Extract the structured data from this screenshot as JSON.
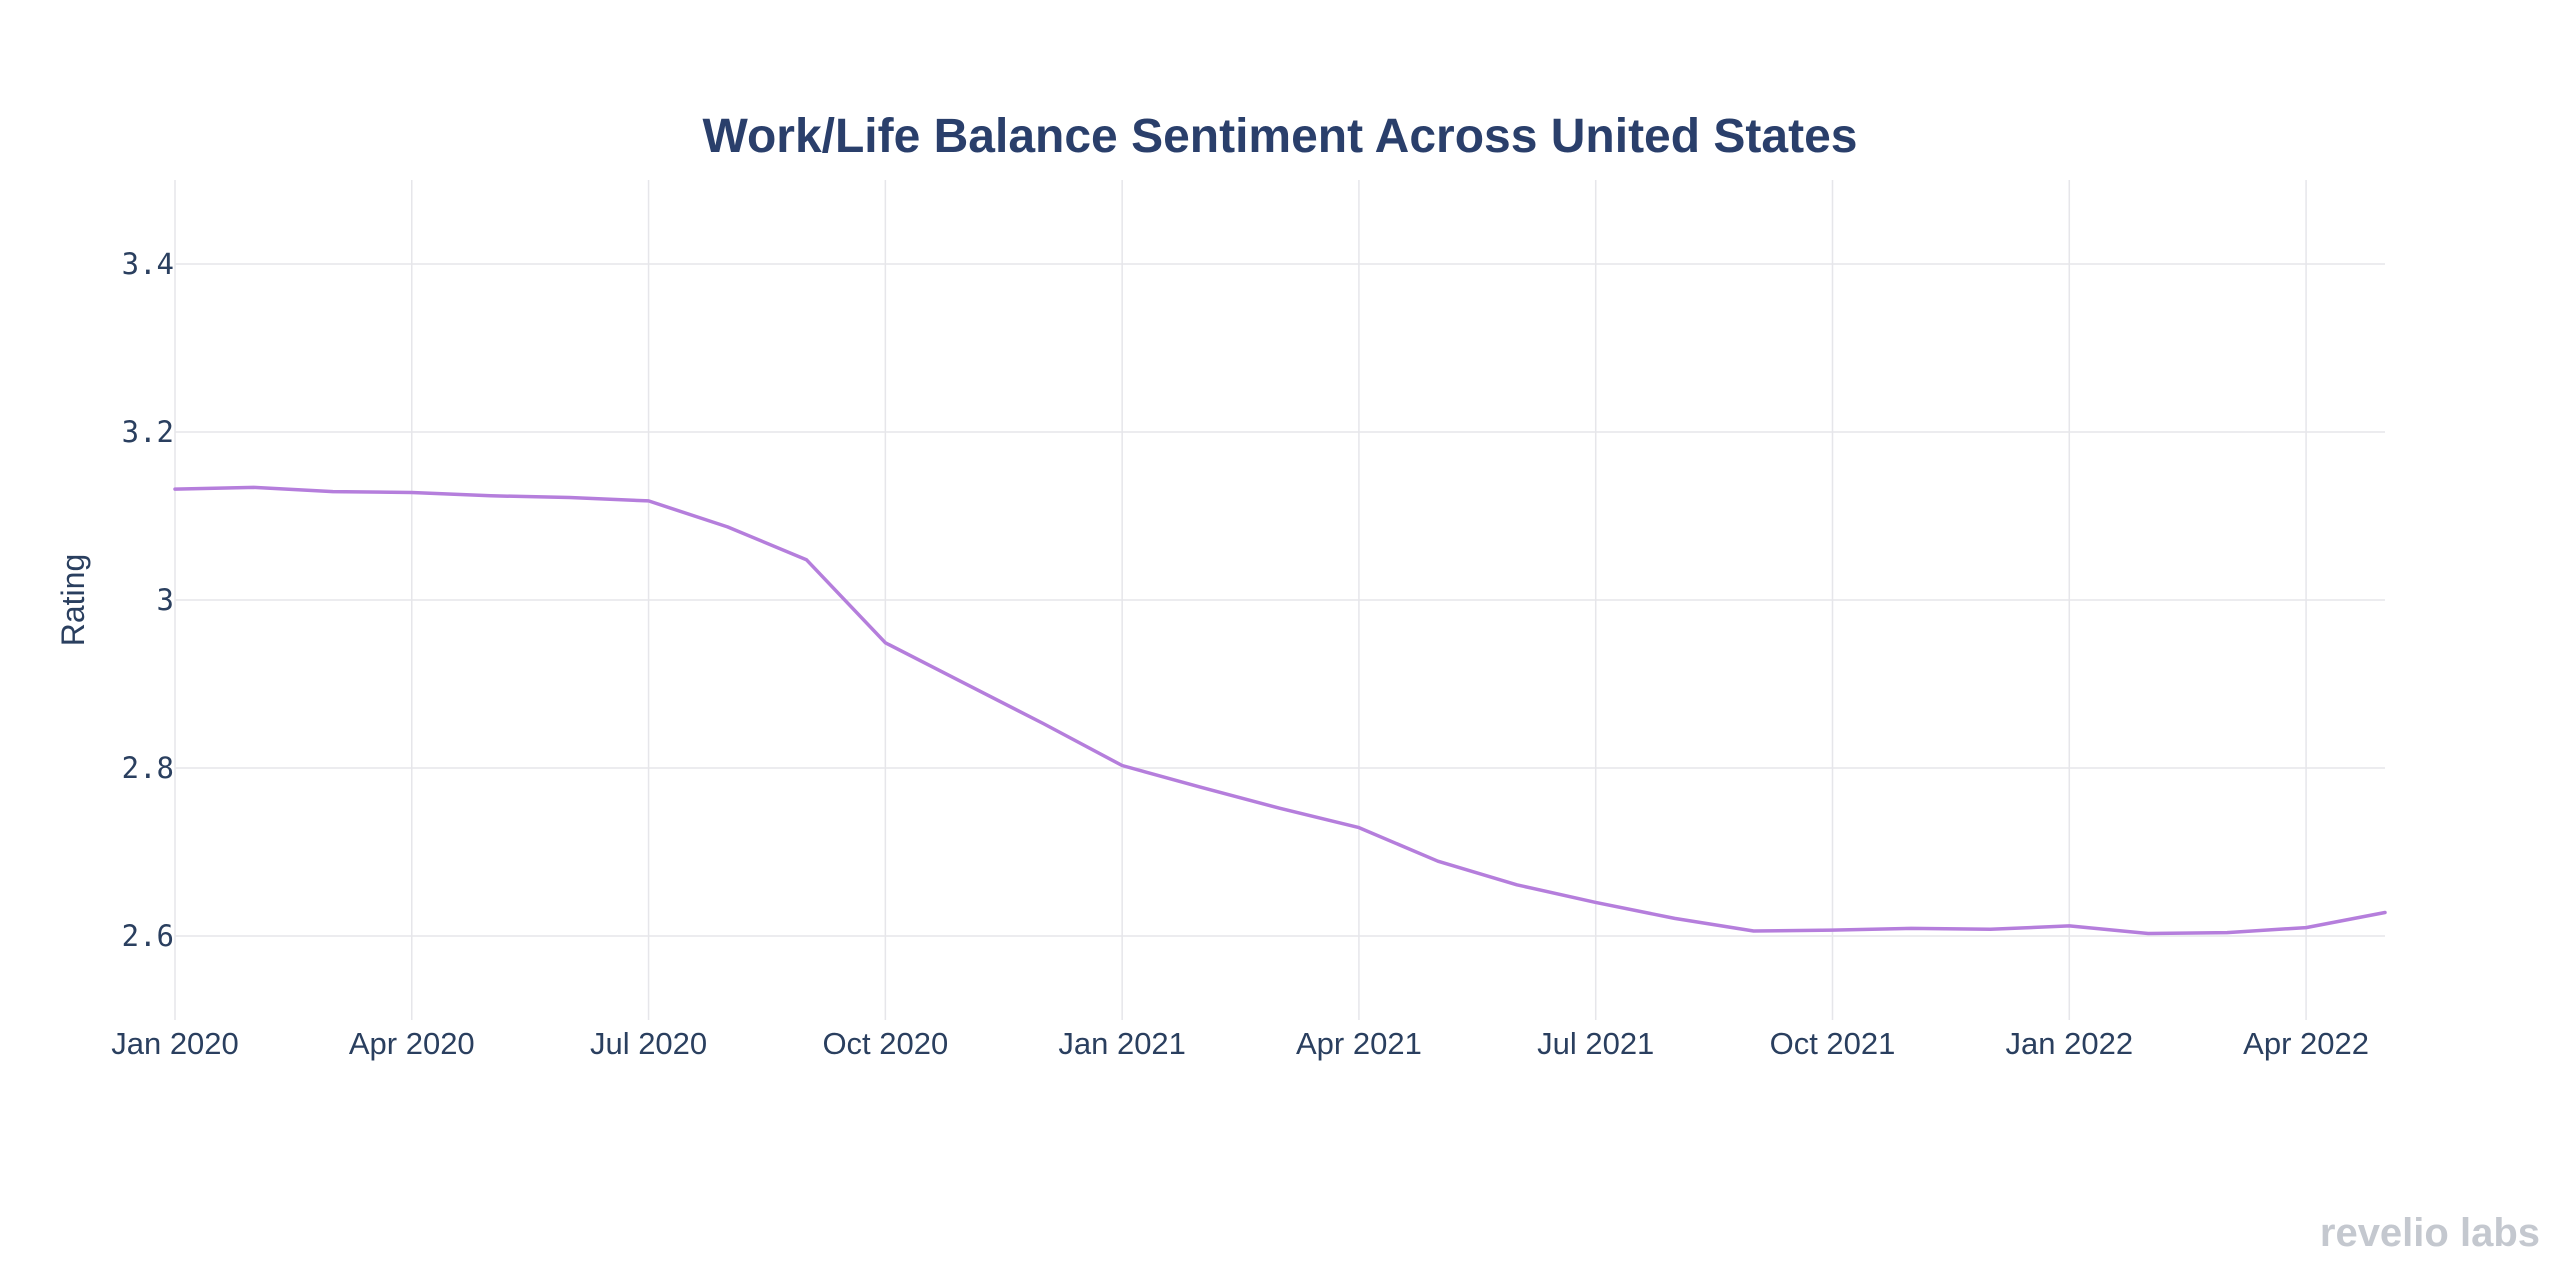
{
  "brand": {
    "text": "revelio labs",
    "color": "#c4c8cf"
  },
  "chart_data": {
    "type": "line",
    "title": "Work/Life Balance Sentiment Across United States",
    "xlabel": "",
    "ylabel": "Rating",
    "ylim": [
      2.5,
      3.5
    ],
    "yticks": [
      2.6,
      2.8,
      3,
      3.2,
      3.4
    ],
    "ytick_labels": [
      "2.6",
      "2.8",
      "3",
      "3.2",
      "3.4"
    ],
    "xlim": [
      "2020-01",
      "2022-05"
    ],
    "xticks": [
      "2020-01",
      "2020-04",
      "2020-07",
      "2020-10",
      "2021-01",
      "2021-04",
      "2021-07",
      "2021-10",
      "2022-01",
      "2022-04"
    ],
    "xtick_labels": [
      "Jan 2020",
      "Apr 2020",
      "Jul 2020",
      "Oct 2020",
      "Jan 2021",
      "Apr 2021",
      "Jul 2021",
      "Oct 2021",
      "Jan 2022",
      "Apr 2022"
    ],
    "grid": true,
    "colors": {
      "title": "#2a3f6b",
      "text": "#2a3f5f",
      "grid": "#e6e6ea"
    },
    "series": [
      {
        "name": "Rating",
        "color": "#b57edc",
        "x": [
          "2020-01",
          "2020-02",
          "2020-03",
          "2020-04",
          "2020-05",
          "2020-06",
          "2020-07",
          "2020-08",
          "2020-09",
          "2020-10",
          "2020-11",
          "2020-12",
          "2021-01",
          "2021-02",
          "2021-03",
          "2021-04",
          "2021-05",
          "2021-06",
          "2021-07",
          "2021-08",
          "2021-09",
          "2021-10",
          "2021-11",
          "2021-12",
          "2022-01",
          "2022-02",
          "2022-03",
          "2022-04",
          "2022-05"
        ],
        "values": [
          3.132,
          3.134,
          3.129,
          3.128,
          3.124,
          3.122,
          3.118,
          3.087,
          3.048,
          2.949,
          2.901,
          2.853,
          2.803,
          2.777,
          2.752,
          2.729,
          2.689,
          2.661,
          2.64,
          2.621,
          2.606,
          2.607,
          2.609,
          2.608,
          2.612,
          2.603,
          2.604,
          2.61,
          2.628
        ]
      }
    ]
  }
}
